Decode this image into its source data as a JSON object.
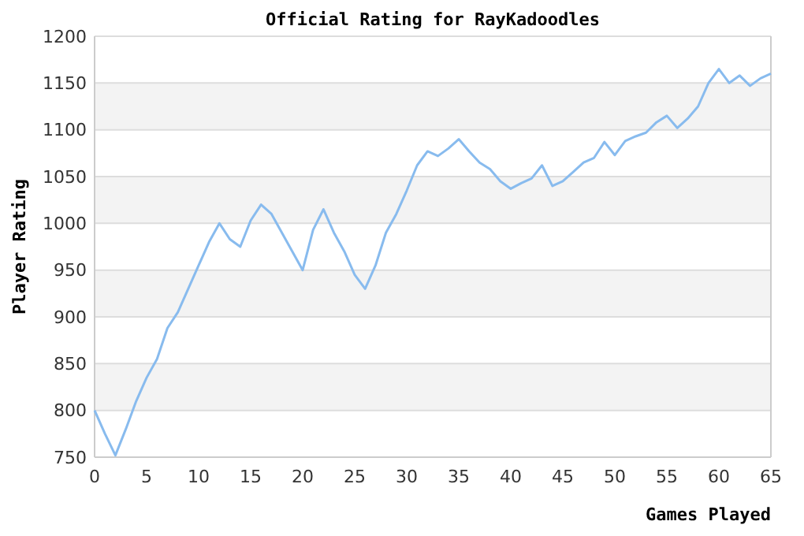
{
  "chart_data": {
    "type": "line",
    "title": "Official Rating for RayKadoodles",
    "xlabel": "Games Played",
    "ylabel": "Player Rating",
    "x": [
      0,
      1,
      2,
      3,
      4,
      5,
      6,
      7,
      8,
      9,
      10,
      11,
      12,
      13,
      14,
      15,
      16,
      17,
      18,
      19,
      20,
      21,
      22,
      23,
      24,
      25,
      26,
      27,
      28,
      29,
      30,
      31,
      32,
      33,
      34,
      35,
      36,
      37,
      38,
      39,
      40,
      41,
      42,
      43,
      44,
      45,
      46,
      47,
      48,
      49,
      50,
      51,
      52,
      53,
      54,
      55,
      56,
      57,
      58,
      59,
      60,
      61,
      62,
      63,
      64,
      65
    ],
    "series": [
      {
        "color": "#88bbee",
        "values": [
          800,
          775,
          752,
          780,
          810,
          835,
          855,
          888,
          905,
          930,
          955,
          980,
          1000,
          983,
          975,
          1003,
          1020,
          1010,
          990,
          970,
          950,
          993,
          1015,
          990,
          970,
          945,
          930,
          955,
          990,
          1010,
          1035,
          1062,
          1077,
          1072,
          1080,
          1090,
          1077,
          1065,
          1058,
          1045,
          1037,
          1043,
          1048,
          1062,
          1040,
          1045,
          1055,
          1065,
          1070,
          1087,
          1073,
          1088,
          1093,
          1097,
          1108,
          1115,
          1102,
          1112,
          1125,
          1150,
          1165,
          1150,
          1158,
          1147,
          1155,
          1160
        ]
      }
    ],
    "xlim": [
      0,
      65
    ],
    "xticks": [
      0,
      5,
      10,
      15,
      20,
      25,
      30,
      35,
      40,
      45,
      50,
      55,
      60,
      65
    ],
    "ylim": [
      750,
      1200
    ],
    "yticks": [
      750,
      800,
      850,
      900,
      950,
      1000,
      1050,
      1100,
      1150,
      1200
    ],
    "grid": "y",
    "marker": "none",
    "line_style": "solid"
  }
}
